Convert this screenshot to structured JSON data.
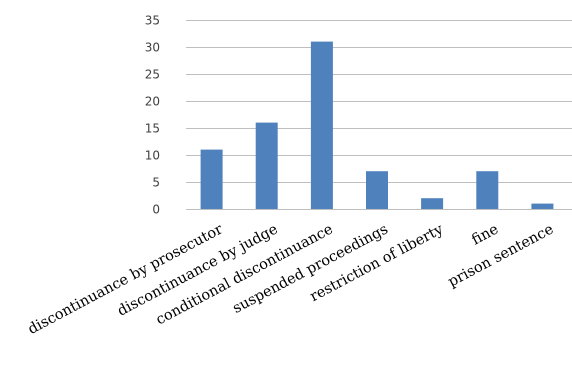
{
  "chart_data": {
    "type": "bar",
    "title": "",
    "xlabel": "",
    "ylabel": "",
    "categories": [
      "discontinuance by prosecutor",
      "discontinuance by judge",
      "conditional discontinuance",
      "suspended proceedings",
      "restriction of liberty",
      "fine",
      "prison sentence"
    ],
    "values": [
      11,
      16,
      31,
      7,
      2,
      7,
      1
    ],
    "ylim": [
      0,
      35
    ],
    "yticks": [
      0,
      5,
      10,
      15,
      20,
      25,
      30,
      35
    ],
    "grid": true,
    "legend": "none",
    "colors": {
      "bar": "#4f81bd",
      "grid": "#bfbfbf",
      "tick_text": "#404040",
      "label_text": "#000000"
    }
  }
}
